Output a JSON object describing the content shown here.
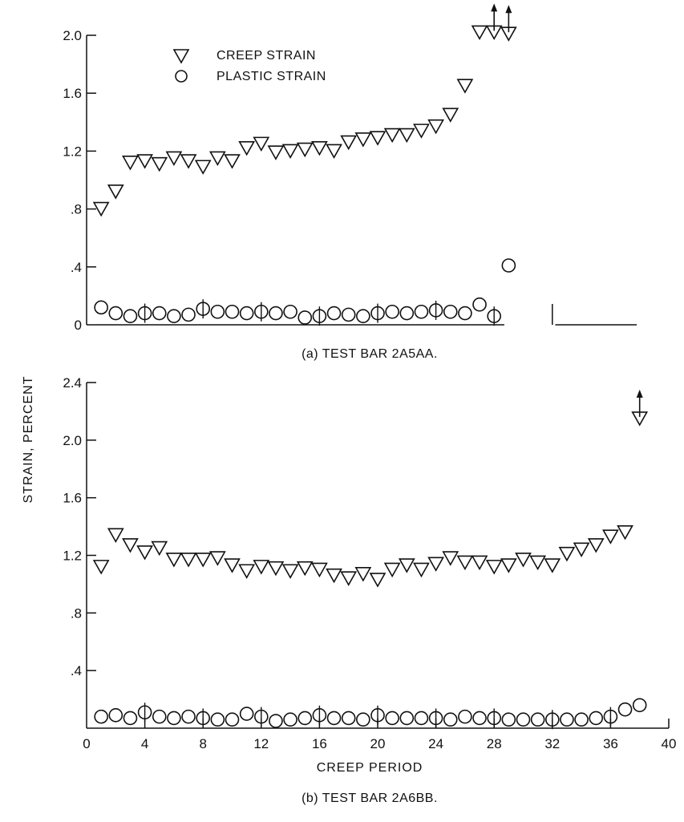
{
  "figure": {
    "ylabel_shared": "STRAIN, PERCENT"
  },
  "chart_data": [
    {
      "type": "scatter",
      "panel": "a",
      "caption": "(a) TEST BAR 2A5AA.",
      "xlabel": "",
      "ylabel": "STRAIN, PERCENT",
      "xlim": [
        0,
        40
      ],
      "ylim": [
        0,
        2.0
      ],
      "yticks": [
        0,
        0.4,
        0.8,
        1.2,
        1.6,
        2.0
      ],
      "ytick_labels": [
        "0",
        ".4",
        ".8",
        "1.2",
        "1.6",
        "2.0"
      ],
      "legend": {
        "placement": "top-left",
        "entries": [
          {
            "label": "CREEP STRAIN",
            "marker": "triangle-down"
          },
          {
            "label": "PLASTIC STRAIN",
            "marker": "circle"
          }
        ]
      },
      "series": [
        {
          "name": "CREEP STRAIN",
          "marker": "triangle-down",
          "x": [
            1,
            2,
            3,
            4,
            5,
            6,
            7,
            8,
            9,
            10,
            11,
            12,
            13,
            14,
            15,
            16,
            17,
            18,
            19,
            20,
            21,
            22,
            23,
            24,
            25,
            26,
            27,
            28,
            29
          ],
          "y": [
            0.8,
            0.92,
            1.12,
            1.13,
            1.11,
            1.15,
            1.13,
            1.09,
            1.15,
            1.13,
            1.22,
            1.25,
            1.19,
            1.2,
            1.21,
            1.22,
            1.2,
            1.26,
            1.28,
            1.29,
            1.31,
            1.31,
            1.34,
            1.37,
            1.45,
            1.65,
            2.02,
            2.02,
            2.01
          ],
          "arrows_up_at_x": [
            28,
            29
          ]
        },
        {
          "name": "PLASTIC STRAIN",
          "marker": "circle",
          "x": [
            1,
            2,
            3,
            4,
            5,
            6,
            7,
            8,
            9,
            10,
            11,
            12,
            13,
            14,
            15,
            16,
            17,
            18,
            19,
            20,
            21,
            22,
            23,
            24,
            25,
            26,
            27,
            28,
            29
          ],
          "y": [
            0.12,
            0.08,
            0.06,
            0.08,
            0.08,
            0.06,
            0.07,
            0.11,
            0.09,
            0.09,
            0.08,
            0.09,
            0.08,
            0.09,
            0.05,
            0.06,
            0.08,
            0.07,
            0.06,
            0.08,
            0.09,
            0.08,
            0.09,
            0.1,
            0.09,
            0.08,
            0.14,
            0.06,
            0.41
          ],
          "tick_marks_at_x": [
            4,
            8,
            12,
            16,
            20,
            24,
            28
          ]
        }
      ]
    },
    {
      "type": "scatter",
      "panel": "b",
      "caption": "(b) TEST BAR 2A6BB.",
      "xlabel": "CREEP PERIOD",
      "ylabel": "STRAIN, PERCENT",
      "xlim": [
        0,
        40
      ],
      "ylim": [
        0,
        2.4
      ],
      "xticks": [
        0,
        4,
        8,
        12,
        16,
        20,
        24,
        28,
        32,
        36,
        40
      ],
      "xtick_labels": [
        "0",
        "4",
        "8",
        "12",
        "16",
        "20",
        "24",
        "28",
        "32",
        "36",
        "40"
      ],
      "yticks": [
        0.4,
        0.8,
        1.2,
        1.6,
        2.0,
        2.4
      ],
      "ytick_labels": [
        ".4",
        ".8",
        "1.2",
        "1.6",
        "2.0",
        "2.4"
      ],
      "series": [
        {
          "name": "CREEP STRAIN",
          "marker": "triangle-down",
          "x": [
            1,
            2,
            3,
            4,
            5,
            6,
            7,
            8,
            9,
            10,
            11,
            12,
            13,
            14,
            15,
            16,
            17,
            18,
            19,
            20,
            21,
            22,
            23,
            24,
            25,
            26,
            27,
            28,
            29,
            30,
            31,
            32,
            33,
            34,
            35,
            36,
            37,
            38
          ],
          "y": [
            1.12,
            1.34,
            1.27,
            1.22,
            1.25,
            1.17,
            1.17,
            1.17,
            1.18,
            1.13,
            1.09,
            1.12,
            1.11,
            1.09,
            1.11,
            1.1,
            1.06,
            1.04,
            1.07,
            1.03,
            1.1,
            1.13,
            1.1,
            1.14,
            1.18,
            1.15,
            1.15,
            1.12,
            1.13,
            1.17,
            1.15,
            1.13,
            1.21,
            1.24,
            1.27,
            1.33,
            1.36,
            2.15
          ],
          "arrows_up_at_x": [
            38
          ]
        },
        {
          "name": "PLASTIC STRAIN",
          "marker": "circle",
          "x": [
            1,
            2,
            3,
            4,
            5,
            6,
            7,
            8,
            9,
            10,
            11,
            12,
            13,
            14,
            15,
            16,
            17,
            18,
            19,
            20,
            21,
            22,
            23,
            24,
            25,
            26,
            27,
            28,
            29,
            30,
            31,
            32,
            33,
            34,
            35,
            36,
            37,
            38
          ],
          "y": [
            0.08,
            0.09,
            0.07,
            0.11,
            0.08,
            0.07,
            0.08,
            0.07,
            0.06,
            0.06,
            0.1,
            0.08,
            0.05,
            0.06,
            0.07,
            0.09,
            0.07,
            0.07,
            0.06,
            0.09,
            0.07,
            0.07,
            0.07,
            0.07,
            0.06,
            0.08,
            0.07,
            0.07,
            0.06,
            0.06,
            0.06,
            0.06,
            0.06,
            0.06,
            0.07,
            0.08,
            0.13,
            0.16
          ],
          "tick_marks_at_x": [
            4,
            8,
            12,
            16,
            20,
            24,
            28,
            32,
            36
          ]
        }
      ]
    }
  ]
}
